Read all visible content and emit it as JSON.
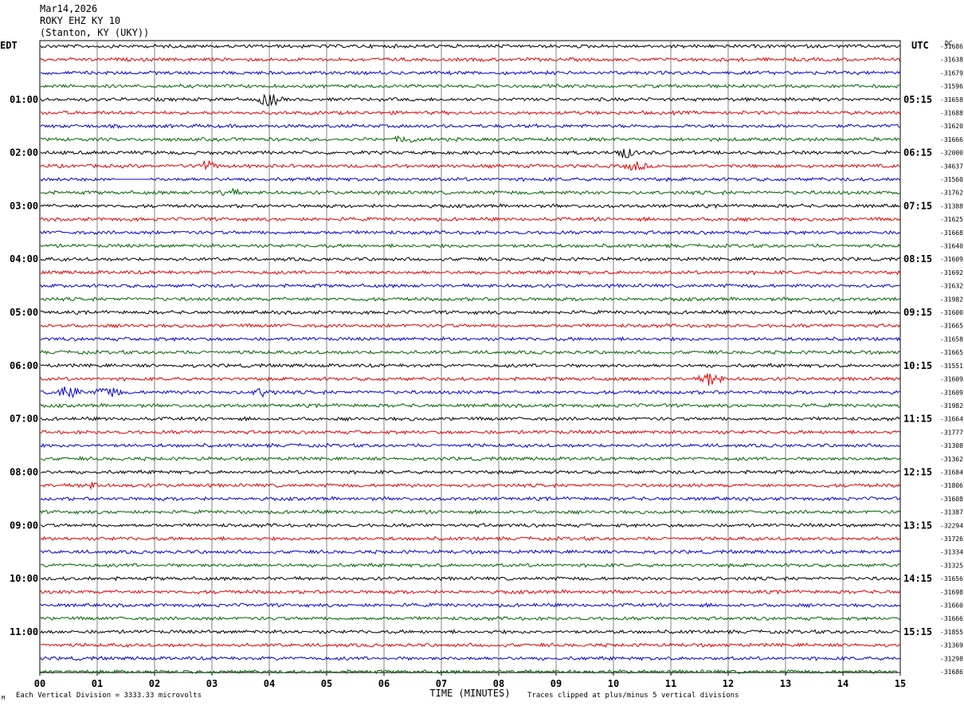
{
  "header": {
    "date": "Mar14,2026",
    "station": "ROKY EHZ KY 10",
    "location": "(Stanton, KY (UKY))"
  },
  "left_zone_label": "EDT",
  "right_zone_label": "UTC",
  "dc_label": "DC",
  "footer": {
    "scale_note": "Each Vertical Division = 3333.33 microvolts",
    "clip_note": "Traces clipped at plus/minus 5 vertical divisions",
    "corner_mark": "M"
  },
  "chart_data": {
    "type": "line",
    "subtype": "helicorder",
    "xlabel": "TIME (MINUTES)",
    "x_ticks": [
      "00",
      "01",
      "02",
      "03",
      "04",
      "05",
      "06",
      "07",
      "08",
      "09",
      "10",
      "11",
      "12",
      "13",
      "14",
      "15"
    ],
    "xlim": [
      0,
      15
    ],
    "rows_per_hour": 4,
    "minutes_per_row": 15,
    "trace_colors": [
      "#000000",
      "#e00000",
      "#0000d0",
      "#006400"
    ],
    "left_hour_labels": [
      "01:00",
      "02:00",
      "03:00",
      "04:00",
      "05:00",
      "06:00",
      "07:00",
      "08:00",
      "09:00",
      "10:00",
      "11:00"
    ],
    "right_hour_labels": [
      "05:15",
      "06:15",
      "07:15",
      "08:15",
      "09:15",
      "10:15",
      "11:15",
      "12:15",
      "13:15",
      "14:15",
      "15:15"
    ],
    "dc_offsets": [
      "-31686",
      "-31638",
      "-31679",
      "-31596",
      "-31658",
      "-31688",
      "-31620",
      "-31666",
      "-32000",
      "-34637",
      "-31560",
      "-31762",
      "-31388",
      "-31625",
      "-31668",
      "-31640",
      "-31609",
      "-31692",
      "-31632",
      "-31982",
      "-31600",
      "-31665",
      "-31658",
      "-31665",
      "-31551",
      "-31609",
      "-31609",
      "-31982",
      "-31664",
      "-31777",
      "-31308",
      "-31362",
      "-31684",
      "-31806",
      "-31608",
      "-31387",
      "-32294",
      "-31726",
      "-31334",
      "-31325",
      "-31656",
      "-31698",
      "-31660",
      "-31666",
      "-31855",
      "-31369",
      "-31298",
      "-31686"
    ],
    "events": [
      {
        "row": 4,
        "minute": 4.0,
        "amplitude": 8
      },
      {
        "row": 9,
        "minute": 2.9,
        "amplitude": 6
      },
      {
        "row": 11,
        "minute": 3.3,
        "amplitude": 4
      },
      {
        "row": 8,
        "minute": 10.2,
        "amplitude": 6
      },
      {
        "row": 9,
        "minute": 10.4,
        "amplitude": 5
      },
      {
        "row": 25,
        "minute": 11.7,
        "amplitude": 9
      },
      {
        "row": 26,
        "minute": 0.5,
        "amplitude": 9
      },
      {
        "row": 26,
        "minute": 1.2,
        "amplitude": 8
      },
      {
        "row": 26,
        "minute": 3.9,
        "amplitude": 5
      },
      {
        "row": 33,
        "minute": 0.9,
        "amplitude": 3
      },
      {
        "row": 7,
        "minute": 6.4,
        "amplitude": 4
      }
    ],
    "gaps": [
      {
        "row": 10,
        "from": 1.3,
        "to": 1.95
      }
    ]
  }
}
